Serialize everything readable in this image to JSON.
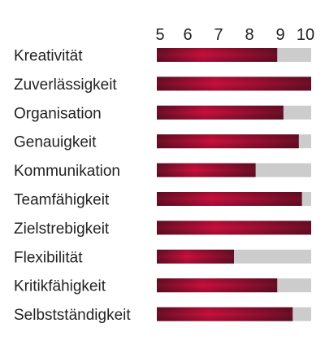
{
  "chart_data": {
    "type": "bar",
    "orientation": "horizontal",
    "title": "",
    "xlabel": "",
    "ylabel": "",
    "categories": [
      "Kreativität",
      "Zuverlässigkeit",
      "Organisation",
      "Genauigkeit",
      "Kommunikation",
      "Teamfähigkeit",
      "Zielstrebigkeit",
      "Flexibilität",
      "Kritikfähigkeit",
      "Selbstständigkeit"
    ],
    "values": [
      8.9,
      10,
      9.1,
      9.6,
      8.2,
      9.7,
      10,
      7.5,
      8.9,
      9.4
    ],
    "xlim": [
      5,
      10
    ],
    "ticks": [
      5,
      6,
      7,
      8,
      9,
      10
    ],
    "tick_position": "top",
    "grid": false,
    "legend": "none",
    "colors": {
      "bar_dark": "#6e0f28",
      "bar_mid": "#c8103c",
      "track": "#cccccc"
    }
  }
}
